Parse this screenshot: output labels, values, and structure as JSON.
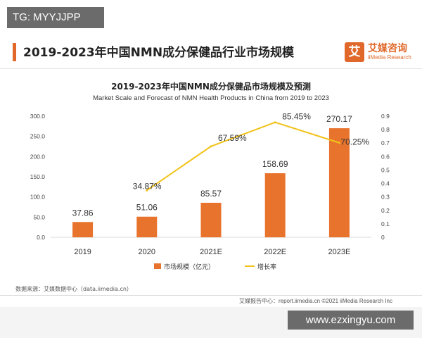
{
  "overlay_tag": "TG: MYYJJPP",
  "header": {
    "title": "2019-2023年中国NMN成分保健品行业市场规模",
    "brand_logo_char": "艾",
    "brand_name": "艾媒咨询",
    "brand_en": "iiMedia Research"
  },
  "colors": {
    "bar": "#e8732c",
    "line": "#f2c21a",
    "accent": "#e0682b"
  },
  "chart_data": {
    "type": "bar",
    "title": "2019-2023年中国NMN成分保健品市场规模及预测",
    "subtitle": "Market Scale and Forecast of NMN Health Products in China from 2019 to 2023",
    "categories": [
      "2019",
      "2020",
      "2021E",
      "2022E",
      "2023E"
    ],
    "series": [
      {
        "name": "市场规模（亿元）",
        "type": "bar",
        "axis": "left",
        "values": [
          37.86,
          51.06,
          85.57,
          158.69,
          270.17
        ]
      },
      {
        "name": "增长率",
        "type": "line",
        "axis": "right",
        "values": [
          null,
          0.3487,
          0.6759,
          0.8545,
          0.7025
        ]
      }
    ],
    "bar_labels": [
      "37.86",
      "51.06",
      "85.57",
      "158.69",
      "270.17"
    ],
    "line_labels": [
      "",
      "34.87%",
      "67.59%",
      "85.45%",
      "70.25%"
    ],
    "y_left": {
      "ylim": [
        0,
        300
      ],
      "ticks": [
        "0.0",
        "50.0",
        "100.0",
        "150.0",
        "200.0",
        "250.0",
        "300.0"
      ]
    },
    "y_right": {
      "ylim": [
        0,
        0.9
      ],
      "ticks": [
        "0",
        "0.1",
        "0.2",
        "0.3",
        "0.4",
        "0.5",
        "0.6",
        "0.7",
        "0.8",
        "0.9"
      ]
    },
    "grid": false,
    "legend": "bottom-center"
  },
  "footer": {
    "source": "数据来源：艾媒数据中心（data.iimedia.cn）",
    "report": "艾媒报告中心：report.iimedia.cn  ©2021  iiMedia Research  Inc"
  },
  "watermark": "www.ezxingyu.com"
}
